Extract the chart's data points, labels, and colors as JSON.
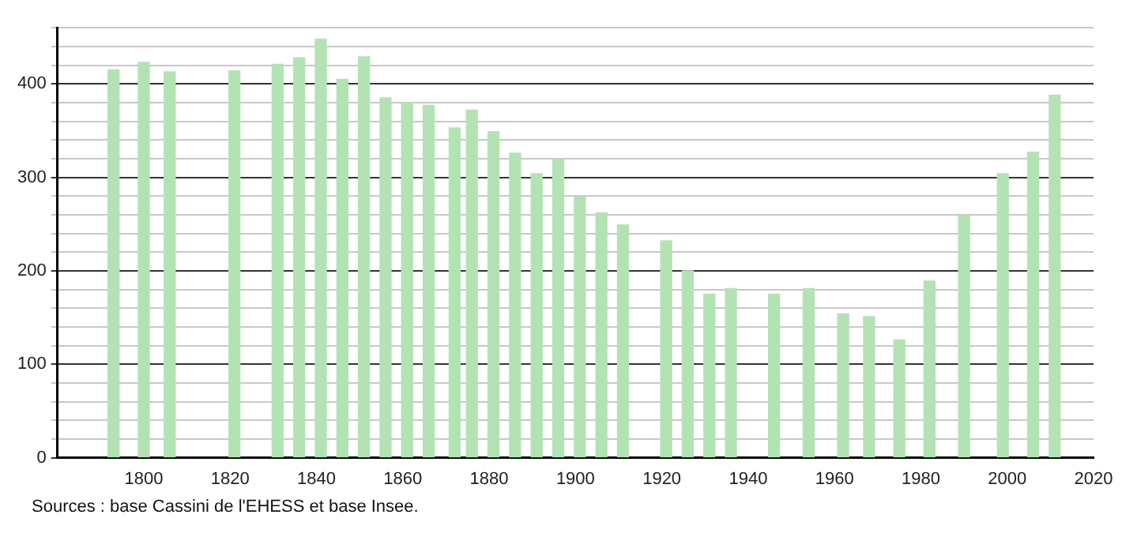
{
  "chart_data": {
    "type": "bar",
    "x": [
      1793,
      1800,
      1806,
      1821,
      1831,
      1836,
      1841,
      1846,
      1851,
      1856,
      1861,
      1866,
      1872,
      1876,
      1881,
      1886,
      1891,
      1896,
      1901,
      1906,
      1911,
      1921,
      1926,
      1931,
      1936,
      1946,
      1954,
      1962,
      1968,
      1975,
      1982,
      1990,
      1999,
      2006,
      2011
    ],
    "values": [
      415,
      423,
      413,
      414,
      421,
      428,
      448,
      405,
      429,
      385,
      380,
      377,
      353,
      372,
      349,
      326,
      304,
      319,
      279,
      262,
      249,
      232,
      200,
      175,
      181,
      175,
      181,
      154,
      151,
      126,
      189,
      259,
      304,
      327,
      388
    ],
    "color": "#b3e3b3",
    "xlim": [
      1780,
      2020
    ],
    "xticks": [
      1800,
      1820,
      1840,
      1860,
      1880,
      1900,
      1920,
      1940,
      1960,
      1980,
      2000,
      2020
    ],
    "ylim": [
      0,
      460
    ],
    "yticks": [
      0,
      {
        "value": 20,
        "label": null
      },
      {
        "value": 40,
        "label": null
      },
      {
        "value": 60,
        "label": null
      },
      {
        "value": 80,
        "label": null
      },
      100,
      {
        "value": 120,
        "label": null
      },
      {
        "value": 140,
        "label": null
      },
      {
        "value": 160,
        "label": null
      },
      {
        "value": 180,
        "label": null
      },
      200,
      {
        "value": 220,
        "label": null
      },
      {
        "value": 240,
        "label": null
      },
      {
        "value": 260,
        "label": null
      },
      {
        "value": 280,
        "label": null
      },
      300,
      {
        "value": 320,
        "label": null
      },
      {
        "value": 340,
        "label": null
      },
      {
        "value": 360,
        "label": null
      },
      {
        "value": 380,
        "label": null
      },
      400,
      {
        "value": 420,
        "label": null
      },
      {
        "value": 440,
        "label": null
      },
      {
        "value": 460,
        "label": null
      }
    ],
    "grid": "y",
    "annotations": [
      "Sources : base Cassini de l'EHESS et base Insee."
    ]
  }
}
